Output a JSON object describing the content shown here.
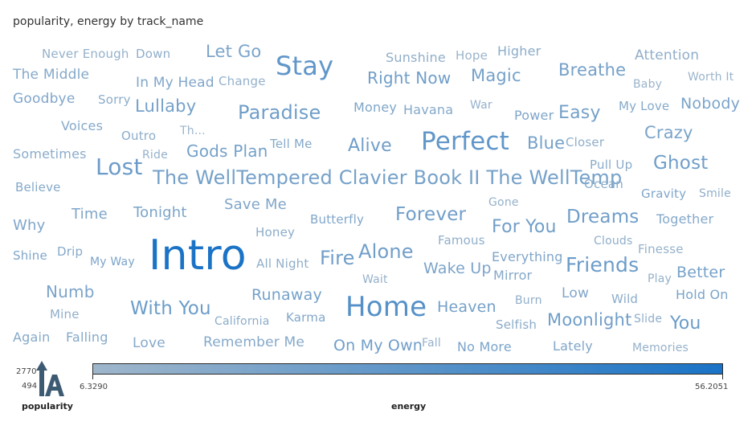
{
  "chart_data": {
    "type": "wordcloud",
    "title": "popularity, energy by track_name",
    "size_legend": {
      "label": "popularity",
      "max": "2770",
      "min": "494"
    },
    "color_legend": {
      "label": "energy",
      "min": "6.3290",
      "max": "56.2051",
      "min_color": "#9fb6cb",
      "max_color": "#1a73c6"
    },
    "words": [
      {
        "text": "Never Enough",
        "energy": 10
      },
      {
        "text": "Down",
        "energy": 12
      },
      {
        "text": "Let Go",
        "energy": 20
      },
      {
        "text": "Stay",
        "energy": 30
      },
      {
        "text": "Sunshine",
        "energy": 12
      },
      {
        "text": "Hope",
        "energy": 8
      },
      {
        "text": "Higher",
        "energy": 14
      },
      {
        "text": "Attention",
        "energy": 12
      },
      {
        "text": "The Middle",
        "energy": 16
      },
      {
        "text": "In My Head",
        "energy": 18
      },
      {
        "text": "Change",
        "energy": 10
      },
      {
        "text": "Right Now",
        "energy": 24
      },
      {
        "text": "Magic",
        "energy": 22
      },
      {
        "text": "Breathe",
        "energy": 22
      },
      {
        "text": "Baby",
        "energy": 8
      },
      {
        "text": "Worth It",
        "energy": 8
      },
      {
        "text": "Goodbye",
        "energy": 18
      },
      {
        "text": "Sorry",
        "energy": 14
      },
      {
        "text": "Lullaby",
        "energy": 22
      },
      {
        "text": "Paradise",
        "energy": 24
      },
      {
        "text": "Money",
        "energy": 18
      },
      {
        "text": "Havana",
        "energy": 16
      },
      {
        "text": "War",
        "energy": 10
      },
      {
        "text": "Power",
        "energy": 18
      },
      {
        "text": "Easy",
        "energy": 22
      },
      {
        "text": "My Love",
        "energy": 16
      },
      {
        "text": "Nobody",
        "energy": 20
      },
      {
        "text": "Voices",
        "energy": 16
      },
      {
        "text": "Outro",
        "energy": 14
      },
      {
        "text": "Th...",
        "energy": 8
      },
      {
        "text": "Tell Me",
        "energy": 16
      },
      {
        "text": "Alive",
        "energy": 24
      },
      {
        "text": "Perfect",
        "energy": 30
      },
      {
        "text": "Blue",
        "energy": 22
      },
      {
        "text": "Closer",
        "energy": 12
      },
      {
        "text": "Crazy",
        "energy": 20
      },
      {
        "text": "Sometimes",
        "energy": 14
      },
      {
        "text": "Ride",
        "energy": 10
      },
      {
        "text": "Gods Plan",
        "energy": 22
      },
      {
        "text": "Lost",
        "energy": 26
      },
      {
        "text": "Pull Up",
        "energy": 14
      },
      {
        "text": "Ghost",
        "energy": 24
      },
      {
        "text": "The WellTempered Clavier Book II The WellTemp",
        "energy": 22
      },
      {
        "text": "Ocean",
        "energy": 14
      },
      {
        "text": "Believe",
        "energy": 16
      },
      {
        "text": "Gravity",
        "energy": 18
      },
      {
        "text": "Smile",
        "energy": 12
      },
      {
        "text": "Gone",
        "energy": 10
      },
      {
        "text": "Save Me",
        "energy": 18
      },
      {
        "text": "Why",
        "energy": 18
      },
      {
        "text": "Time",
        "energy": 18
      },
      {
        "text": "Tonight",
        "energy": 20
      },
      {
        "text": "Butterfly",
        "energy": 18
      },
      {
        "text": "Forever",
        "energy": 24
      },
      {
        "text": "Dreams",
        "energy": 24
      },
      {
        "text": "Together",
        "energy": 16
      },
      {
        "text": "For You",
        "energy": 24
      },
      {
        "text": "Honey",
        "energy": 14
      },
      {
        "text": "Famous",
        "energy": 12
      },
      {
        "text": "Clouds",
        "energy": 12
      },
      {
        "text": "Shine",
        "energy": 18
      },
      {
        "text": "Drip",
        "energy": 16
      },
      {
        "text": "My Way",
        "energy": 20
      },
      {
        "text": "Intro",
        "energy": 56
      },
      {
        "text": "All Night",
        "energy": 12
      },
      {
        "text": "Fire",
        "energy": 24
      },
      {
        "text": "Alone",
        "energy": 24
      },
      {
        "text": "Finesse",
        "energy": 10
      },
      {
        "text": "Everything",
        "energy": 18
      },
      {
        "text": "Friends",
        "energy": 26
      },
      {
        "text": "Wake Up",
        "energy": 20
      },
      {
        "text": "Mirror",
        "energy": 16
      },
      {
        "text": "Better",
        "energy": 22
      },
      {
        "text": "Play",
        "energy": 10
      },
      {
        "text": "Wait",
        "energy": 10
      },
      {
        "text": "Numb",
        "energy": 20
      },
      {
        "text": "Runaway",
        "energy": 22
      },
      {
        "text": "Low",
        "energy": 18
      },
      {
        "text": "Hold On",
        "energy": 20
      },
      {
        "text": "Wild",
        "energy": 14
      },
      {
        "text": "Mine",
        "energy": 12
      },
      {
        "text": "With You",
        "energy": 26
      },
      {
        "text": "Home",
        "energy": 34
      },
      {
        "text": "Heaven",
        "energy": 22
      },
      {
        "text": "Burn",
        "energy": 12
      },
      {
        "text": "Moonlight",
        "energy": 24
      },
      {
        "text": "Slide",
        "energy": 12
      },
      {
        "text": "You",
        "energy": 26
      },
      {
        "text": "California",
        "energy": 14
      },
      {
        "text": "Karma",
        "energy": 18
      },
      {
        "text": "Selfish",
        "energy": 14
      },
      {
        "text": "Again",
        "energy": 16
      },
      {
        "text": "Falling",
        "energy": 16
      },
      {
        "text": "Love",
        "energy": 16
      },
      {
        "text": "Remember Me",
        "energy": 16
      },
      {
        "text": "On My Own",
        "energy": 24
      },
      {
        "text": "Fall",
        "energy": 10
      },
      {
        "text": "No More",
        "energy": 20
      },
      {
        "text": "Lately",
        "energy": 18
      },
      {
        "text": "Memories",
        "energy": 10
      }
    ]
  }
}
